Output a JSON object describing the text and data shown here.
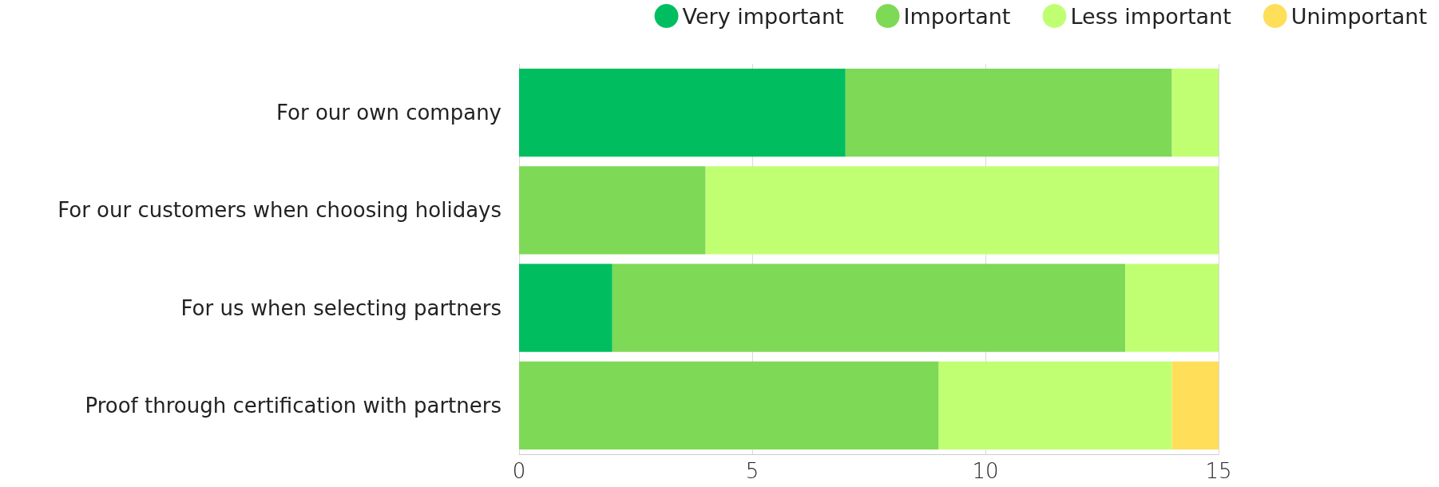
{
  "chart_data": {
    "type": "bar",
    "orientation": "horizontal",
    "stacked": true,
    "categories": [
      "For our own company",
      "For our customers when choosing holidays",
      "For us when selecting partners",
      "Proof through certification with partners"
    ],
    "series": [
      {
        "name": "Very important",
        "color": "#00be5f",
        "values": [
          7,
          0,
          2,
          0
        ]
      },
      {
        "name": "Important",
        "color": "#7ed957",
        "values": [
          7,
          4,
          11,
          9
        ]
      },
      {
        "name": "Less important",
        "color": "#c1ff72",
        "values": [
          1,
          11,
          2,
          5
        ]
      },
      {
        "name": "Unimportant",
        "color": "#ffde59",
        "values": [
          0,
          0,
          0,
          1
        ]
      }
    ],
    "xlim": [
      0,
      15
    ],
    "xticks": [
      0,
      5,
      10,
      15
    ],
    "grid": "x",
    "legend": "top right"
  }
}
